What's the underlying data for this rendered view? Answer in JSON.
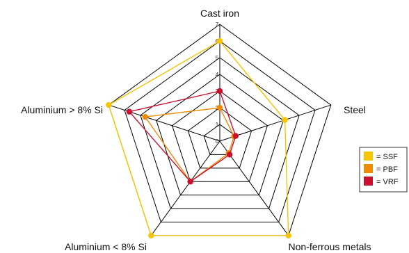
{
  "chart_data": {
    "type": "radar",
    "axes": [
      "Cast iron",
      "Steel",
      "Non-ferrous metals",
      "Aluminium < 8% Si",
      "Aluminium > 8% Si"
    ],
    "r_ticks": [
      "0",
      "1",
      "2",
      "3",
      "4",
      "5",
      "6",
      "7"
    ],
    "r_range": [
      0,
      7
    ],
    "grid": true,
    "legend_position": "right",
    "series": [
      {
        "name": "SSF",
        "color": "#F6C400",
        "values": [
          6.0,
          4.1,
          7.0,
          7.0,
          7.0
        ]
      },
      {
        "name": "PBF",
        "color": "#F08A00",
        "values": [
          2.0,
          0.9,
          0.9,
          3.0,
          4.7
        ]
      },
      {
        "name": "VRF",
        "color": "#C8102E",
        "values": [
          3.0,
          1.0,
          1.0,
          3.0,
          5.7
        ]
      }
    ]
  }
}
